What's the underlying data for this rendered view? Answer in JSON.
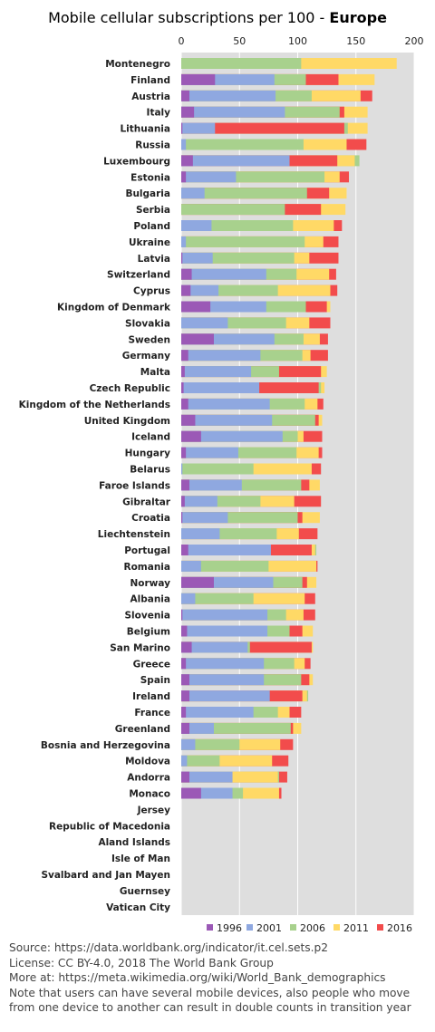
{
  "title": {
    "main": "Mobile cellular subscriptions per 100 - ",
    "region": "Europe"
  },
  "footer": {
    "source": "Source: https://data.worldbank.org/indicator/it.cel.sets.p2",
    "license": "License: CC BY-4.0,  2018  The World Bank Group",
    "more": "More at: https://meta.wikimedia.org/wiki/World_Bank_demographics",
    "note": "Note that users can have several mobile devices, also people who move from one device to another can result in double counts in transition year"
  },
  "chart_data": {
    "type": "bar",
    "orientation": "horizontal",
    "stacking": "overlaid",
    "xlim": [
      0,
      200
    ],
    "xticks": [
      0,
      50,
      100,
      150,
      200
    ],
    "grid": true,
    "legend_position": "bottom",
    "series_colors": {
      "1996": "#9b59b6",
      "2001": "#8fa8e0",
      "2006": "#a8d18d",
      "2011": "#ffd966",
      "2016": "#f24c4c"
    },
    "series_order": [
      "1996",
      "2001",
      "2006",
      "2011",
      "2016"
    ],
    "categories": [
      {
        "name": "Montenegro",
        "v": [
          null,
          null,
          103,
          185,
          null
        ]
      },
      {
        "name": "Finland",
        "v": [
          29,
          80,
          107,
          166,
          135
        ]
      },
      {
        "name": "Austria",
        "v": [
          7,
          81,
          112,
          154,
          164
        ]
      },
      {
        "name": "Italy",
        "v": [
          11,
          89,
          136,
          160,
          140
        ]
      },
      {
        "name": "Lithuania",
        "v": [
          1,
          29,
          143,
          160,
          140
        ]
      },
      {
        "name": "Russia",
        "v": [
          0,
          4,
          105,
          142,
          159
        ]
      },
      {
        "name": "Luxembourg",
        "v": [
          10,
          93,
          153,
          149,
          134
        ]
      },
      {
        "name": "Estonia",
        "v": [
          4,
          47,
          123,
          136,
          144
        ]
      },
      {
        "name": "Bulgaria",
        "v": [
          0,
          20,
          108,
          142,
          127
        ]
      },
      {
        "name": "Serbia",
        "v": [
          null,
          null,
          89,
          141,
          120
        ]
      },
      {
        "name": "Poland",
        "v": [
          0,
          26,
          96,
          131,
          138
        ]
      },
      {
        "name": "Ukraine",
        "v": [
          0,
          4,
          106,
          122,
          135
        ]
      },
      {
        "name": "Latvia",
        "v": [
          1,
          27,
          97,
          110,
          135
        ]
      },
      {
        "name": "Switzerland",
        "v": [
          9,
          73,
          99,
          127,
          133
        ]
      },
      {
        "name": "Cyprus",
        "v": [
          8,
          32,
          83,
          128,
          134
        ]
      },
      {
        "name": "Kingdom of Denmark",
        "v": [
          25,
          73,
          107,
          128,
          125
        ]
      },
      {
        "name": "Slovakia",
        "v": [
          0,
          40,
          90,
          110,
          128
        ]
      },
      {
        "name": "Sweden",
        "v": [
          28,
          80,
          105,
          119,
          126
        ]
      },
      {
        "name": "Germany",
        "v": [
          6,
          68,
          104,
          111,
          126
        ]
      },
      {
        "name": "Malta",
        "v": [
          3,
          60,
          84,
          125,
          120
        ]
      },
      {
        "name": "Czech Republic",
        "v": [
          2,
          67,
          120,
          123,
          118
        ]
      },
      {
        "name": "Kingdom of the Netherlands",
        "v": [
          6,
          76,
          106,
          117,
          122
        ]
      },
      {
        "name": "United Kingdom",
        "v": [
          12,
          78,
          115,
          121,
          118
        ]
      },
      {
        "name": "Iceland",
        "v": [
          17,
          87,
          100,
          105,
          121
        ]
      },
      {
        "name": "Hungary",
        "v": [
          4,
          49,
          99,
          118,
          121
        ]
      },
      {
        "name": "Belarus",
        "v": [
          0,
          1,
          62,
          112,
          120
        ]
      },
      {
        "name": "Faroe Islands",
        "v": [
          7,
          52,
          103,
          119,
          110
        ]
      },
      {
        "name": "Gibraltar",
        "v": [
          3,
          31,
          68,
          97,
          120
        ]
      },
      {
        "name": "Croatia",
        "v": [
          1,
          40,
          100,
          119,
          104
        ]
      },
      {
        "name": "Liechtenstein",
        "v": [
          0,
          33,
          82,
          101,
          117
        ]
      },
      {
        "name": "Portugal",
        "v": [
          6,
          77,
          116,
          115,
          112
        ]
      },
      {
        "name": "Romania",
        "v": [
          0,
          17,
          75,
          116,
          117
        ]
      },
      {
        "name": "Norway",
        "v": [
          28,
          79,
          104,
          116,
          108
        ]
      },
      {
        "name": "Albania",
        "v": [
          0,
          12,
          62,
          106,
          115
        ]
      },
      {
        "name": "Slovenia",
        "v": [
          1,
          74,
          90,
          105,
          115
        ]
      },
      {
        "name": "Belgium",
        "v": [
          5,
          74,
          93,
          113,
          104
        ]
      },
      {
        "name": "San Marino",
        "v": [
          9,
          57,
          59,
          113,
          112
        ]
      },
      {
        "name": "Greece",
        "v": [
          4,
          71,
          97,
          106,
          111
        ]
      },
      {
        "name": "Spain",
        "v": [
          7,
          71,
          103,
          113,
          110
        ]
      },
      {
        "name": "Ireland",
        "v": [
          7,
          76,
          109,
          108,
          104
        ]
      },
      {
        "name": "France",
        "v": [
          4,
          62,
          83,
          93,
          103
        ]
      },
      {
        "name": "Greenland",
        "v": [
          7,
          28,
          94,
          103,
          96
        ]
      },
      {
        "name": "Bosnia and Herzegovina",
        "v": [
          0,
          12,
          50,
          85,
          96
        ]
      },
      {
        "name": "Moldova",
        "v": [
          0,
          5,
          33,
          78,
          92
        ]
      },
      {
        "name": "Andorra",
        "v": [
          7,
          44,
          84,
          83,
          91
        ]
      },
      {
        "name": "Monaco",
        "v": [
          17,
          44,
          53,
          84,
          86
        ]
      },
      {
        "name": "Jersey",
        "v": [
          null,
          null,
          null,
          null,
          null
        ]
      },
      {
        "name": "Republic of Macedonia",
        "v": [
          null,
          null,
          null,
          null,
          null
        ]
      },
      {
        "name": "Aland Islands",
        "v": [
          null,
          null,
          null,
          null,
          null
        ]
      },
      {
        "name": "Isle of Man",
        "v": [
          null,
          null,
          null,
          null,
          null
        ]
      },
      {
        "name": "Svalbard and Jan Mayen",
        "v": [
          null,
          null,
          null,
          null,
          null
        ]
      },
      {
        "name": "Guernsey",
        "v": [
          null,
          null,
          null,
          null,
          null
        ]
      },
      {
        "name": "Vatican City",
        "v": [
          null,
          null,
          null,
          null,
          null
        ]
      }
    ]
  }
}
